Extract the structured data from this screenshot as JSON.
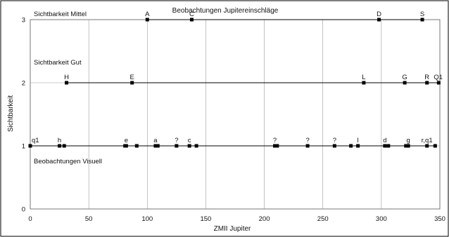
{
  "chart_data": {
    "type": "scatter",
    "title": "Beobachtungen Jupitereinschläge",
    "xlabel": "ZMII Jupiter",
    "ylabel": "Sichtbarkeit",
    "xlim": [
      0,
      350
    ],
    "ylim": [
      0,
      3
    ],
    "xticks": [
      "0",
      "50",
      "100",
      "150",
      "200",
      "250",
      "300",
      "350"
    ],
    "yticks": [
      "0",
      "1",
      "2",
      "3"
    ],
    "grid": true,
    "annotations": [
      {
        "text": "Sichtbarkeit Mittel",
        "y": 3
      },
      {
        "text": "Sichtbarkeit Gut",
        "y": 2
      },
      {
        "text": "Beobachtungen Visuell",
        "y": 1
      }
    ],
    "marker_color": "#000000",
    "line_color": "#000000",
    "series": [
      {
        "y": 3,
        "points": [
          {
            "x": 100,
            "label": "A"
          },
          {
            "x": 138,
            "label": "C"
          },
          {
            "x": 298,
            "label": "D"
          },
          {
            "x": 335,
            "label": "S"
          }
        ]
      },
      {
        "y": 2,
        "points": [
          {
            "x": 31,
            "label": "H"
          },
          {
            "x": 87,
            "label": "E"
          },
          {
            "x": 285,
            "label": "L"
          },
          {
            "x": 320,
            "label": "G"
          },
          {
            "x": 339,
            "label": "R"
          },
          {
            "x": 349,
            "label": "Q1"
          }
        ]
      },
      {
        "y": 1,
        "points": [
          {
            "x": 0,
            "label": "q1"
          },
          {
            "x": 25,
            "label": "h"
          },
          {
            "x": 29,
            "label": ""
          },
          {
            "x": 81,
            "label": ""
          },
          {
            "x": 82,
            "label": "e"
          },
          {
            "x": 91,
            "label": ""
          },
          {
            "x": 107,
            "label": "a"
          },
          {
            "x": 109,
            "label": ""
          },
          {
            "x": 125,
            "label": "?"
          },
          {
            "x": 136,
            "label": "c"
          },
          {
            "x": 142,
            "label": ""
          },
          {
            "x": 209,
            "label": "?"
          },
          {
            "x": 211,
            "label": ""
          },
          {
            "x": 237,
            "label": "?"
          },
          {
            "x": 260,
            "label": "?"
          },
          {
            "x": 274,
            "label": ""
          },
          {
            "x": 280,
            "label": "l"
          },
          {
            "x": 303,
            "label": "d"
          },
          {
            "x": 306,
            "label": ""
          },
          {
            "x": 321,
            "label": ""
          },
          {
            "x": 323,
            "label": "g"
          },
          {
            "x": 339,
            "label": "r,q1"
          },
          {
            "x": 346,
            "label": ""
          }
        ]
      }
    ]
  }
}
